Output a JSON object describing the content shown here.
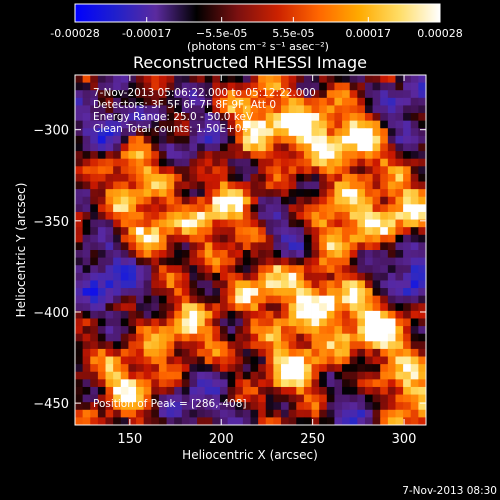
{
  "colorbar": {
    "ticks": [
      "-0.00028",
      "-0.00017",
      "−5.5e-05",
      "5.5e-05",
      "0.00017",
      "0.00028"
    ],
    "tick_values": [
      -0.00028,
      -0.00017,
      -5.5e-05,
      5.5e-05,
      0.00017,
      0.00028
    ],
    "range": [
      -0.00028,
      0.00028
    ],
    "units": "(photons cm⁻² s⁻¹ asec⁻²)",
    "colors": [
      "#0000ff",
      "#2020cc",
      "#5b2b9e",
      "#000000",
      "#7a1010",
      "#cc2200",
      "#ff6600",
      "#ffaa00",
      "#ffdd66",
      "#ffffff"
    ]
  },
  "chart_data": {
    "type": "heatmap",
    "title": "Reconstructed RHESSI Image",
    "xlabel": "Heliocentric X (arcsec)",
    "ylabel": "Heliocentric Y (arcsec)",
    "xlim": [
      120,
      312
    ],
    "ylim": [
      -462,
      -270
    ],
    "x_ticks": [
      150,
      200,
      250,
      300
    ],
    "x_tick_labels": [
      "150",
      "200",
      "250",
      "300"
    ],
    "y_ticks": [
      -300,
      -350,
      -400,
      -450
    ],
    "y_tick_labels": [
      "−300",
      "−350",
      "−400",
      "−450"
    ],
    "value_units": "photons cm^-2 s^-1 asec^-2",
    "peak_position": [
      286,
      -408
    ],
    "bright_regions": [
      {
        "x": 215,
        "y": -295,
        "level": 0.9
      },
      {
        "x": 245,
        "y": -300,
        "level": 0.8
      },
      {
        "x": 275,
        "y": -305,
        "level": 0.85
      },
      {
        "x": 150,
        "y": -320,
        "level": 0.75
      },
      {
        "x": 200,
        "y": -345,
        "level": 0.8
      },
      {
        "x": 160,
        "y": -355,
        "level": 0.7
      },
      {
        "x": 265,
        "y": -350,
        "level": 0.85
      },
      {
        "x": 300,
        "y": -345,
        "level": 0.8
      },
      {
        "x": 225,
        "y": -385,
        "level": 0.75
      },
      {
        "x": 255,
        "y": -395,
        "level": 0.8
      },
      {
        "x": 286,
        "y": -408,
        "level": 1.0
      },
      {
        "x": 180,
        "y": -410,
        "level": 0.7
      },
      {
        "x": 150,
        "y": -440,
        "level": 0.75
      },
      {
        "x": 240,
        "y": -430,
        "level": 0.8
      },
      {
        "x": 300,
        "y": -445,
        "level": 0.85
      }
    ],
    "dim_regions": [
      {
        "x": 140,
        "y": -300,
        "level": -0.7
      },
      {
        "x": 140,
        "y": -380,
        "level": -0.8
      },
      {
        "x": 195,
        "y": -300,
        "level": -0.6
      },
      {
        "x": 300,
        "y": -290,
        "level": -0.6
      },
      {
        "x": 235,
        "y": -360,
        "level": -0.5
      },
      {
        "x": 305,
        "y": -380,
        "level": -0.9
      },
      {
        "x": 185,
        "y": -450,
        "level": -0.5
      },
      {
        "x": 275,
        "y": -450,
        "level": -0.5
      }
    ]
  },
  "annotations": {
    "time_range": "7-Nov-2013 05:06:22.000 to 05:12:22.000",
    "detectors": "Detectors: 3F 5F 6F 7F 8F 9F, Att 0",
    "energy": "Energy Range: 25.0 - 50.0 keV",
    "clean": "Clean     Total counts: 1.50E+04",
    "peak": "Position of Peak = [286,-408]"
  },
  "timestamp": "7-Nov-2013 08:30"
}
